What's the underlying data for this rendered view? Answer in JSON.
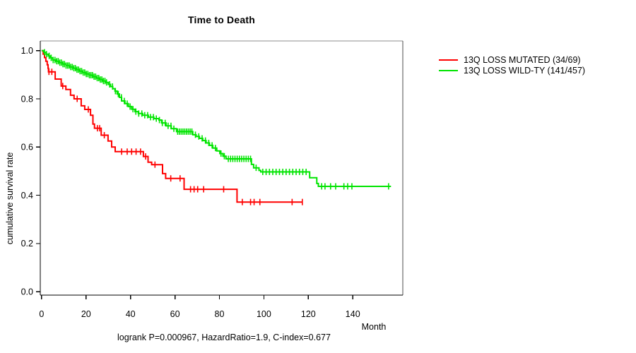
{
  "title": "Time to Death",
  "y_axis_label": "cumulative survival rate",
  "x_axis_label": "Month",
  "caption": "logrank P=0.000967, HazardRatio=1.9, C-index=0.677",
  "legend": [
    {
      "label": "13Q LOSS MUTATED (34/69)",
      "color": "#ff0000"
    },
    {
      "label": "13Q LOSS WILD-TY (141/457)",
      "color": "#00e400"
    }
  ],
  "chart_data": {
    "type": "line",
    "subtype": "kaplan-meier-step",
    "title": "Time to Death",
    "xlabel": "Month",
    "ylabel": "cumulative survival rate",
    "x_ticks": [
      0,
      20,
      40,
      60,
      80,
      100,
      120,
      140
    ],
    "y_ticks": [
      0.0,
      0.2,
      0.4,
      0.6,
      0.8,
      1.0
    ],
    "xlim": [
      -0.6,
      162.5
    ],
    "ylim": [
      -0.014,
      1.04
    ],
    "grid": false,
    "legend_position": "right-outside",
    "series": [
      {
        "name": "13Q LOSS MUTATED (34/69)",
        "color": "#ff0000",
        "end": 117.5,
        "steps": [
          [
            0,
            1.0
          ],
          [
            0.7,
            0.985
          ],
          [
            1.3,
            0.971
          ],
          [
            1.9,
            0.956
          ],
          [
            2.5,
            0.941
          ],
          [
            2.9,
            0.927
          ],
          [
            3.1,
            0.912
          ],
          [
            6.1,
            0.882
          ],
          [
            8.8,
            0.853
          ],
          [
            10.9,
            0.839
          ],
          [
            13.0,
            0.815
          ],
          [
            14.6,
            0.8
          ],
          [
            17.8,
            0.771
          ],
          [
            19.4,
            0.756
          ],
          [
            22.0,
            0.732
          ],
          [
            23.1,
            0.695
          ],
          [
            23.8,
            0.678
          ],
          [
            26.8,
            0.649
          ],
          [
            29.9,
            0.625
          ],
          [
            31.5,
            0.6
          ],
          [
            33.1,
            0.581
          ],
          [
            45.8,
            0.561
          ],
          [
            47.9,
            0.537
          ],
          [
            49.5,
            0.527
          ],
          [
            54.4,
            0.49
          ],
          [
            55.8,
            0.47
          ],
          [
            64.1,
            0.425
          ],
          [
            87.9,
            0.372
          ]
        ],
        "censors": [
          3.3,
          4.6,
          9.5,
          16.0,
          21.0,
          25.1,
          26.1,
          28.2,
          36.0,
          38.5,
          40.5,
          42.5,
          44.5,
          46.8,
          51.0,
          58.1,
          62.3,
          67.0,
          68.6,
          70.2,
          72.9,
          81.9,
          90.3,
          94.0,
          95.6,
          98.2,
          112.7,
          117.3
        ]
      },
      {
        "name": "13Q LOSS WILD-TY (141/457)",
        "color": "#00e400",
        "end": 157.2,
        "steps": [
          [
            0,
            1.0
          ],
          [
            1,
            0.993
          ],
          [
            2,
            0.985
          ],
          [
            3,
            0.978
          ],
          [
            4,
            0.97
          ],
          [
            5,
            0.961
          ],
          [
            6.5,
            0.956
          ],
          [
            8,
            0.95
          ],
          [
            9.5,
            0.944
          ],
          [
            11,
            0.938
          ],
          [
            12.5,
            0.932
          ],
          [
            14,
            0.927
          ],
          [
            15.5,
            0.921
          ],
          [
            17,
            0.915
          ],
          [
            18.5,
            0.909
          ],
          [
            20,
            0.903
          ],
          [
            21.5,
            0.898
          ],
          [
            23,
            0.892
          ],
          [
            24.5,
            0.886
          ],
          [
            26,
            0.88
          ],
          [
            27.5,
            0.874
          ],
          [
            29,
            0.868
          ],
          [
            30,
            0.86
          ],
          [
            31,
            0.851
          ],
          [
            32,
            0.842
          ],
          [
            33,
            0.832
          ],
          [
            34,
            0.82
          ],
          [
            35,
            0.806
          ],
          [
            36,
            0.791
          ],
          [
            37.5,
            0.78
          ],
          [
            39,
            0.768
          ],
          [
            40.5,
            0.757
          ],
          [
            42,
            0.747
          ],
          [
            43.5,
            0.739
          ],
          [
            45.5,
            0.732
          ],
          [
            48,
            0.724
          ],
          [
            50.5,
            0.718
          ],
          [
            52.8,
            0.712
          ],
          [
            54,
            0.7
          ],
          [
            56,
            0.688
          ],
          [
            58.3,
            0.676
          ],
          [
            60.7,
            0.664
          ],
          [
            68,
            0.651
          ],
          [
            69.5,
            0.644
          ],
          [
            71,
            0.636
          ],
          [
            72.5,
            0.627
          ],
          [
            74,
            0.617
          ],
          [
            75.5,
            0.607
          ],
          [
            77,
            0.596
          ],
          [
            78.8,
            0.584
          ],
          [
            80.2,
            0.573
          ],
          [
            81.6,
            0.562
          ],
          [
            83,
            0.551
          ],
          [
            94.4,
            0.528
          ],
          [
            95.4,
            0.514
          ],
          [
            97.8,
            0.503
          ],
          [
            98.6,
            0.497
          ],
          [
            120.6,
            0.473
          ],
          [
            123.8,
            0.449
          ],
          [
            124.5,
            0.437
          ]
        ],
        "censors": [
          1.3,
          2.2,
          3.4,
          4.3,
          5.2,
          6.0,
          6.8,
          7.5,
          8.2,
          8.9,
          9.6,
          10.3,
          11.0,
          11.7,
          12.4,
          13.1,
          13.8,
          14.5,
          15.2,
          15.9,
          16.6,
          17.3,
          18.0,
          18.7,
          19.4,
          20.1,
          20.8,
          21.5,
          22.2,
          22.9,
          23.6,
          24.3,
          25.0,
          25.7,
          26.4,
          27.1,
          27.8,
          28.5,
          29.2,
          30.6,
          31.9,
          33.2,
          34.5,
          35.9,
          37.2,
          38.5,
          39.8,
          41.1,
          42.4,
          43.7,
          45.1,
          46.4,
          47.7,
          49.0,
          50.3,
          51.6,
          53.0,
          54.3,
          55.6,
          56.9,
          58.2,
          59.5,
          61.2,
          62.0,
          62.8,
          63.6,
          64.4,
          65.2,
          66.0,
          66.8,
          67.6,
          69.2,
          70.7,
          72.2,
          73.7,
          75.2,
          76.7,
          78.2,
          80.7,
          82.2,
          84.0,
          85.0,
          86.0,
          87.0,
          88.0,
          89.0,
          90.0,
          91.0,
          92.0,
          93.0,
          94.0,
          96.5,
          99.5,
          101.0,
          102.5,
          104.0,
          105.5,
          107.0,
          108.5,
          110.0,
          111.5,
          113.0,
          114.5,
          116.0,
          117.5,
          119.0,
          126.0,
          127.5,
          130.0,
          132.3,
          136.0,
          137.7,
          139.6,
          156.1
        ]
      }
    ]
  }
}
